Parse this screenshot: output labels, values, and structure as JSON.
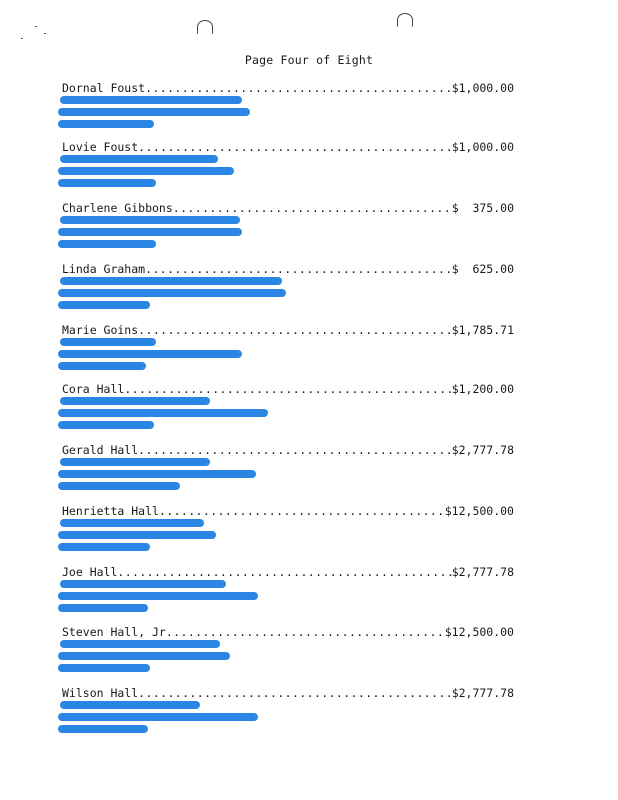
{
  "page_title": "Page Four of Eight",
  "entries": [
    {
      "name": "Dornal Foust",
      "amount": "$1,000.00"
    },
    {
      "name": "Lovie Foust",
      "amount": "$1,000.00"
    },
    {
      "name": "Charlene Gibbons",
      "amount": "$  375.00"
    },
    {
      "name": "Linda Graham",
      "amount": "$  625.00"
    },
    {
      "name": "Marie Goins",
      "amount": "$1,785.71"
    },
    {
      "name": "Cora Hall",
      "amount": "$1,200.00"
    },
    {
      "name": "Gerald Hall",
      "amount": "$2,777.78"
    },
    {
      "name": "Henrietta Hall",
      "amount": "$12,500.00"
    },
    {
      "name": "Joe Hall",
      "amount": "$2,777.78"
    },
    {
      "name": "Steven Hall, Jr",
      "amount": "$12,500.00"
    },
    {
      "name": "Wilson Hall",
      "amount": "$2,777.78"
    }
  ],
  "dot_leader": "................................................................................................",
  "colors": {
    "redaction": "#1f7fe0"
  }
}
